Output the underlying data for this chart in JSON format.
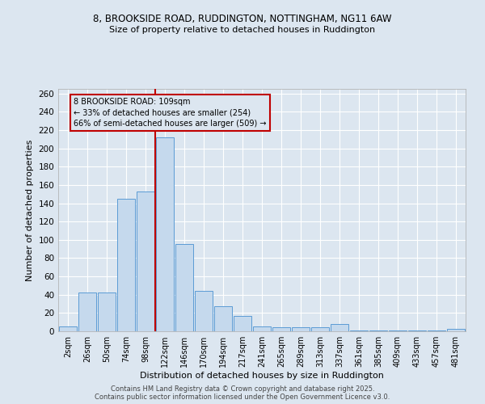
{
  "title1": "8, BROOKSIDE ROAD, RUDDINGTON, NOTTINGHAM, NG11 6AW",
  "title2": "Size of property relative to detached houses in Ruddington",
  "xlabel": "Distribution of detached houses by size in Ruddington",
  "ylabel": "Number of detached properties",
  "categories": [
    "2sqm",
    "26sqm",
    "50sqm",
    "74sqm",
    "98sqm",
    "122sqm",
    "146sqm",
    "170sqm",
    "194sqm",
    "217sqm",
    "241sqm",
    "265sqm",
    "289sqm",
    "313sqm",
    "337sqm",
    "361sqm",
    "385sqm",
    "409sqm",
    "433sqm",
    "457sqm",
    "481sqm"
  ],
  "values": [
    5,
    42,
    42,
    145,
    153,
    212,
    95,
    44,
    27,
    17,
    5,
    4,
    4,
    4,
    8,
    1,
    1,
    1,
    1,
    1,
    3
  ],
  "bar_color": "#c5d9ed",
  "bar_edge_color": "#5b9bd5",
  "vline_x": 4.5,
  "vline_color": "#c00000",
  "annotation_text": "8 BROOKSIDE ROAD: 109sqm\n← 33% of detached houses are smaller (254)\n66% of semi-detached houses are larger (509) →",
  "annotation_box_color": "#c00000",
  "annotation_text_color": "#000000",
  "ylim": [
    0,
    265
  ],
  "yticks": [
    0,
    20,
    40,
    60,
    80,
    100,
    120,
    140,
    160,
    180,
    200,
    220,
    240,
    260
  ],
  "background_color": "#dce6f0",
  "plot_bg_color": "#dce6f0",
  "grid_color": "#ffffff",
  "footer1": "Contains HM Land Registry data © Crown copyright and database right 2025.",
  "footer2": "Contains public sector information licensed under the Open Government Licence v3.0."
}
